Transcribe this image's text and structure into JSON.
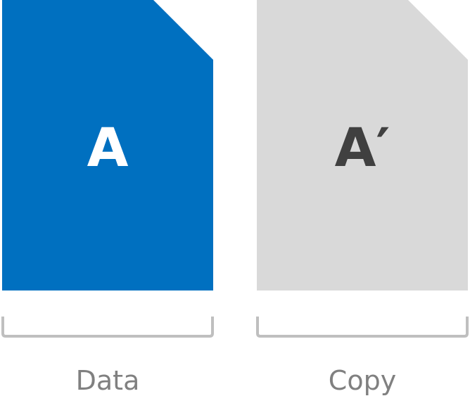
{
  "data_doc": {
    "letter": "A",
    "caption": "Data",
    "fill_color": "#0070c0",
    "letter_color": "#ffffff"
  },
  "copy_doc": {
    "letter": "A′",
    "caption": "Copy",
    "fill_color": "#d9d9d9",
    "letter_color": "#404040"
  },
  "bracket_color": "#bfbfbf",
  "caption_color": "#808080"
}
